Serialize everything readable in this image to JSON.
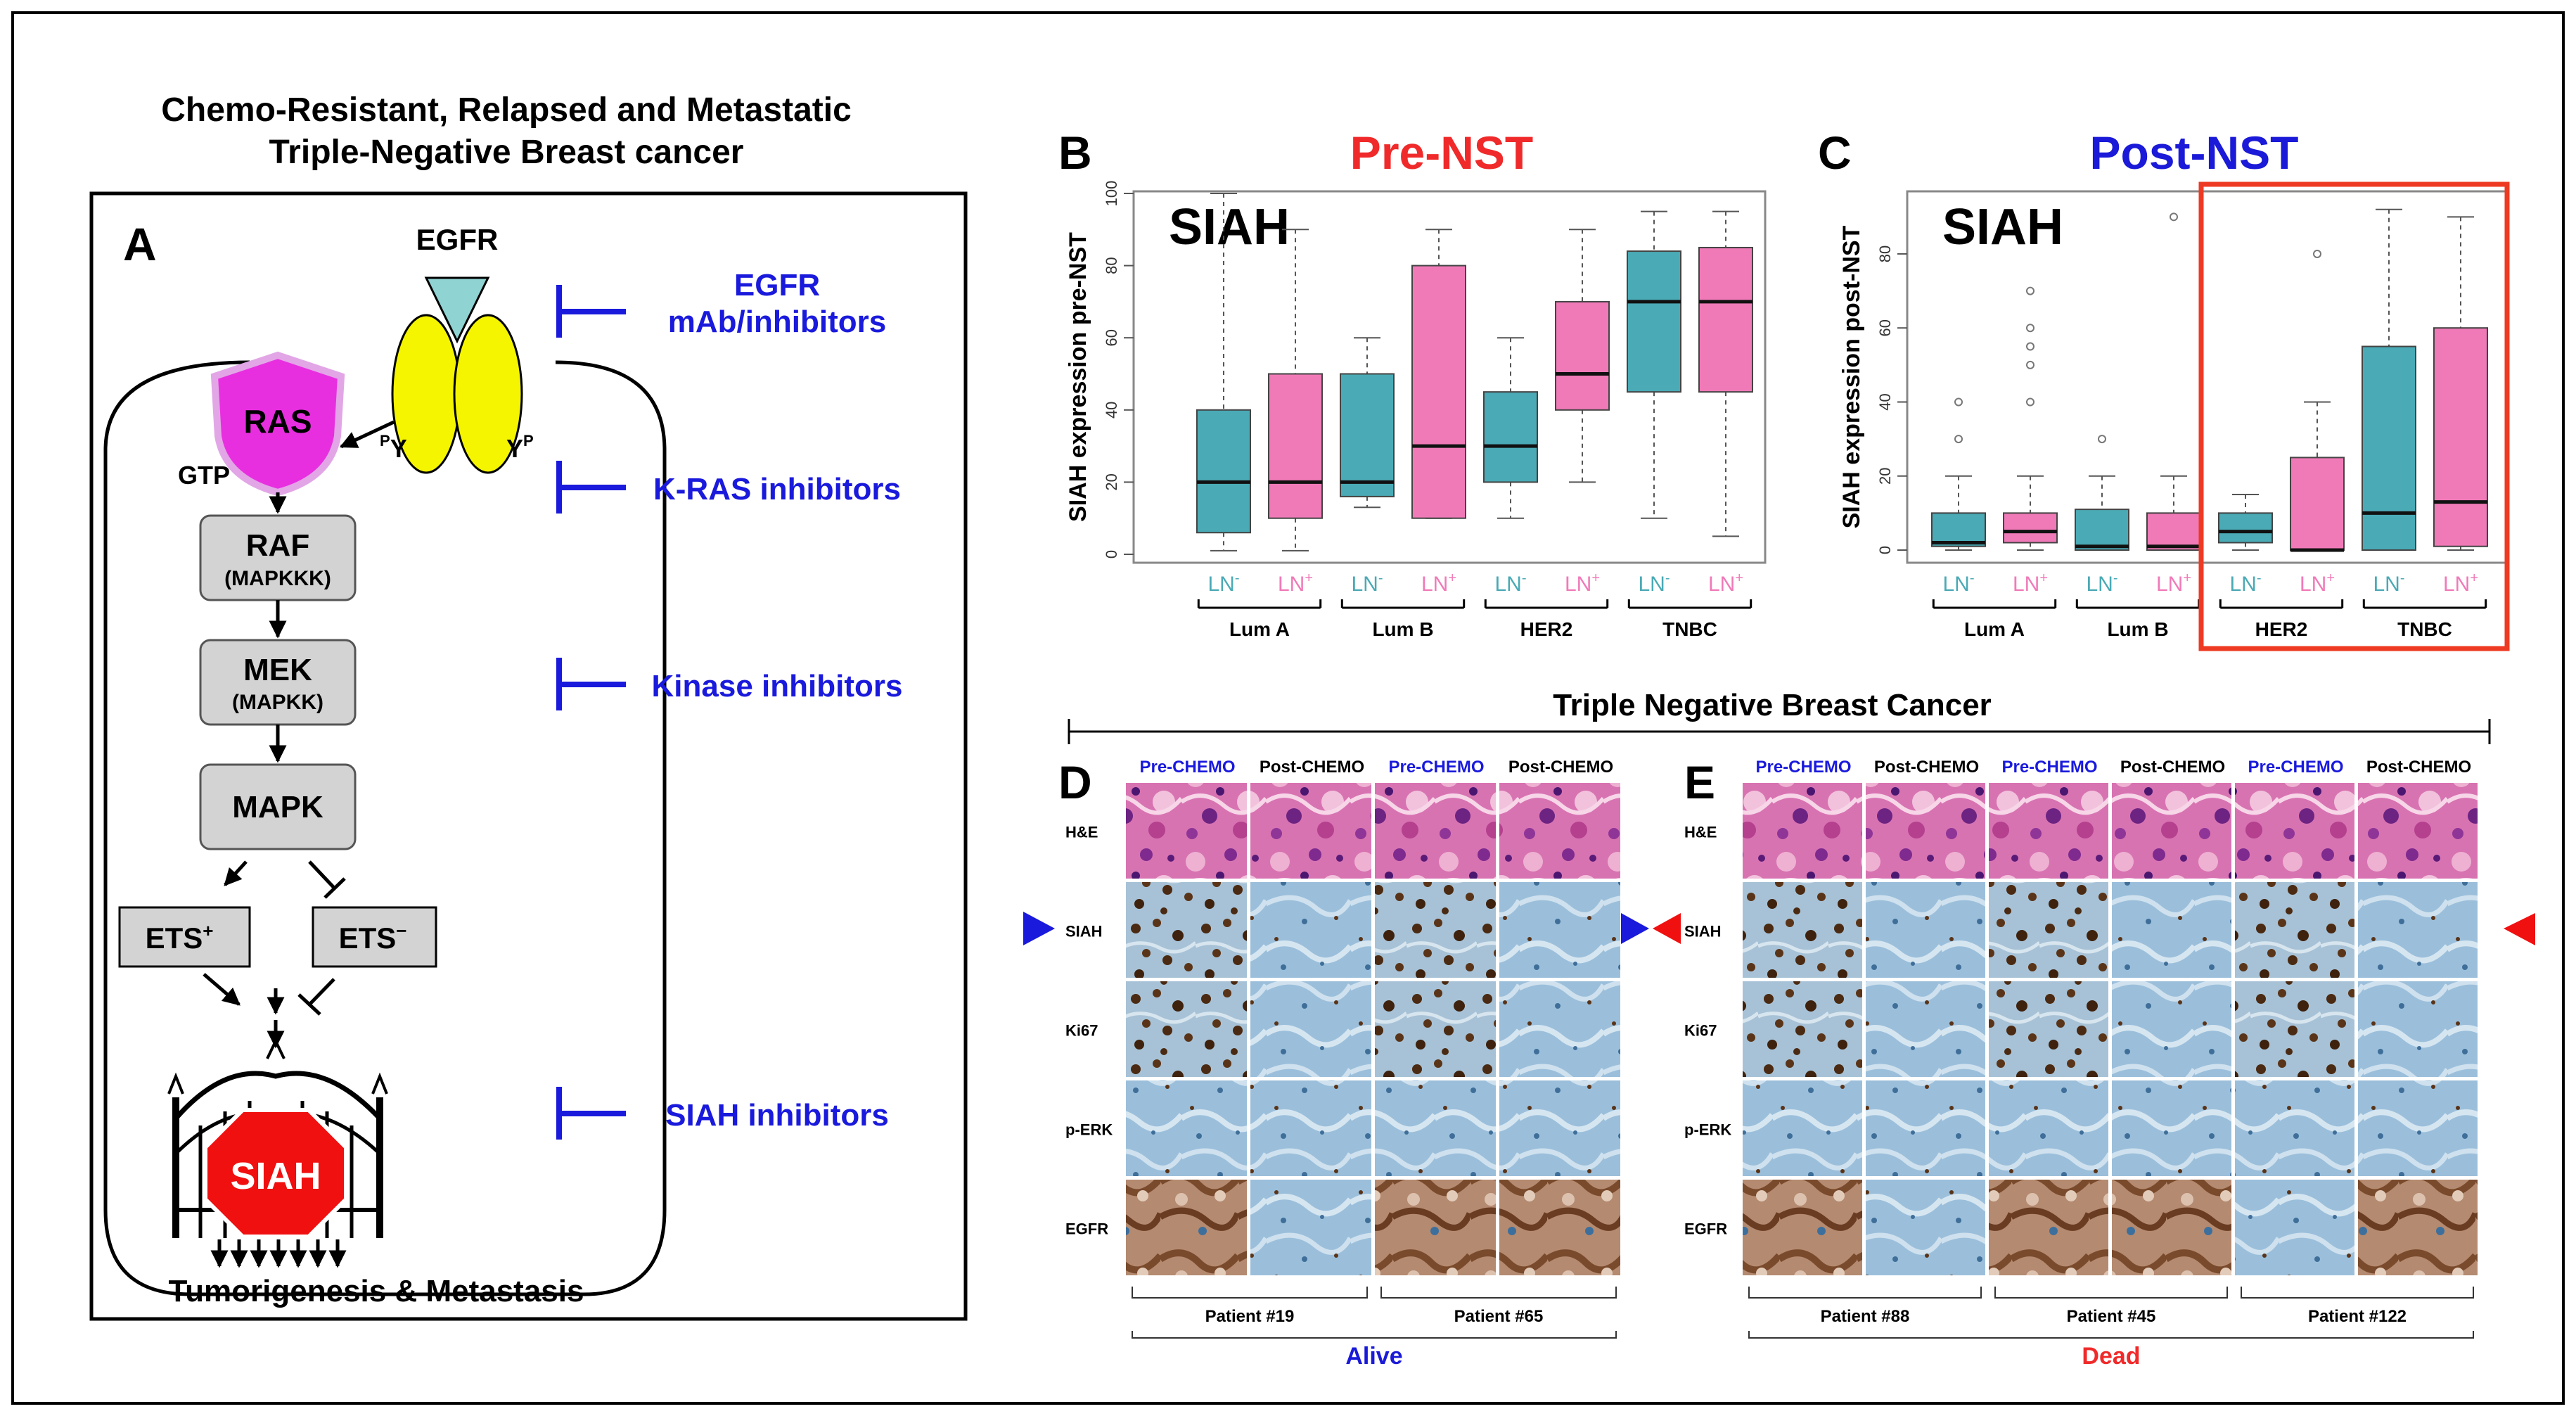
{
  "panel_a": {
    "letter": "A",
    "title_line1": "Chemo-Resistant, Relapsed and Metastatic",
    "title_line2": "Triple-Negative Breast cancer",
    "receptor": "EGFR",
    "ras": "RAS",
    "gtp": "GTP",
    "py": "Y",
    "py_sup": "P",
    "nodes": [
      {
        "label": "RAF",
        "sub": "(MAPKKK)"
      },
      {
        "label": "MEK",
        "sub": "(MAPKK)"
      },
      {
        "label": "MAPK",
        "sub": ""
      }
    ],
    "ets_plus": "ETS",
    "ets_plus_sup": "+",
    "ets_minus": "ETS",
    "ets_minus_sup": "−",
    "siah": "SIAH",
    "outcome": "Tumorigenesis & Metastasis",
    "inhibitors": [
      {
        "line1": "EGFR",
        "line2": "mAb/inhibitors"
      },
      {
        "line1": "K-RAS inhibitors",
        "line2": ""
      },
      {
        "line1": "Kinase inhibitors",
        "line2": ""
      },
      {
        "line1": "SIAH inhibitors",
        "line2": ""
      }
    ],
    "colors": {
      "inhibitor": "#1a1adc",
      "ras_fill": "#e82fe0",
      "receptor": "#f5f500",
      "stop": "#f01010",
      "teal": "#8fd3d3"
    }
  },
  "chart_data": [
    {
      "type": "box",
      "letter": "B",
      "title": "Pre-NST",
      "title_color": "#f02a2a",
      "label": "SIAH",
      "ylabel": "SIAH expression pre-NST",
      "ylim": [
        0,
        100
      ],
      "yticks": [
        "0",
        "20",
        "40",
        "60",
        "80",
        "100"
      ],
      "subgroups": [
        "Lum A",
        "Lum B",
        "HER2",
        "TNBC"
      ],
      "categories": [
        {
          "label": "LN",
          "sup": "-",
          "color": "#4aaab5",
          "min": 1,
          "q1": 6,
          "median": 20,
          "q3": 40,
          "max": 100
        },
        {
          "label": "LN",
          "sup": "+",
          "color": "#f07ab8",
          "min": 1,
          "q1": 10,
          "median": 20,
          "q3": 50,
          "max": 90
        },
        {
          "label": "LN",
          "sup": "-",
          "color": "#4aaab5",
          "min": 13,
          "q1": 16,
          "median": 20,
          "q3": 50,
          "max": 60
        },
        {
          "label": "LN",
          "sup": "+",
          "color": "#f07ab8",
          "min": 10,
          "q1": 10,
          "median": 30,
          "q3": 80,
          "max": 90
        },
        {
          "label": "LN",
          "sup": "-",
          "color": "#4aaab5",
          "min": 10,
          "q1": 20,
          "median": 30,
          "q3": 45,
          "max": 60
        },
        {
          "label": "LN",
          "sup": "+",
          "color": "#f07ab8",
          "min": 20,
          "q1": 40,
          "median": 50,
          "q3": 70,
          "max": 90
        },
        {
          "label": "LN",
          "sup": "-",
          "color": "#4aaab5",
          "min": 10,
          "q1": 45,
          "median": 70,
          "q3": 84,
          "max": 95
        },
        {
          "label": "LN",
          "sup": "+",
          "color": "#f07ab8",
          "min": 5,
          "q1": 45,
          "median": 70,
          "q3": 85,
          "max": 95
        }
      ],
      "outliers": []
    },
    {
      "type": "box",
      "letter": "C",
      "title": "Post-NST",
      "title_color": "#1a1ad8",
      "label": "SIAH",
      "ylabel": "SIAH expression post-NST",
      "ylim": [
        0,
        95
      ],
      "yticks": [
        "0",
        "20",
        "40",
        "60",
        "80"
      ],
      "subgroups": [
        "Lum A",
        "Lum B",
        "HER2",
        "TNBC"
      ],
      "highlight": "HER2 and TNBC",
      "categories": [
        {
          "label": "LN",
          "sup": "-",
          "color": "#4aaab5",
          "min": 0,
          "q1": 1,
          "median": 2,
          "q3": 10,
          "max": 20
        },
        {
          "label": "LN",
          "sup": "+",
          "color": "#f07ab8",
          "min": 0,
          "q1": 2,
          "median": 5,
          "q3": 10,
          "max": 20
        },
        {
          "label": "LN",
          "sup": "-",
          "color": "#4aaab5",
          "min": 0,
          "q1": 0,
          "median": 1,
          "q3": 11,
          "max": 20
        },
        {
          "label": "LN",
          "sup": "+",
          "color": "#f07ab8",
          "min": 0,
          "q1": 0,
          "median": 1,
          "q3": 10,
          "max": 20
        },
        {
          "label": "LN",
          "sup": "-",
          "color": "#4aaab5",
          "min": 0,
          "q1": 2,
          "median": 5,
          "q3": 10,
          "max": 15
        },
        {
          "label": "LN",
          "sup": "+",
          "color": "#f07ab8",
          "min": 0,
          "q1": 0,
          "median": 0,
          "q3": 25,
          "max": 40
        },
        {
          "label": "LN",
          "sup": "-",
          "color": "#4aaab5",
          "min": 0,
          "q1": 0,
          "median": 10,
          "q3": 55,
          "max": 92
        },
        {
          "label": "LN",
          "sup": "+",
          "color": "#f07ab8",
          "min": 0,
          "q1": 1,
          "median": 13,
          "q3": 60,
          "max": 90
        }
      ],
      "outliers": [
        {
          "cat": 0,
          "values": [
            30,
            40
          ]
        },
        {
          "cat": 1,
          "values": [
            40,
            50,
            55,
            60,
            70
          ]
        },
        {
          "cat": 2,
          "values": [
            30
          ]
        },
        {
          "cat": 3,
          "values": [
            90
          ]
        },
        {
          "cat": 5,
          "values": [
            80
          ]
        }
      ]
    }
  ],
  "panels_de": {
    "heading": "Triple Negative Breast Cancer",
    "rows": [
      "H&E",
      "SIAH",
      "Ki67",
      "p-ERK",
      "EGFR"
    ],
    "pre": "Pre-CHEMO",
    "post": "Post-CHEMO",
    "d": {
      "letter": "D",
      "patients": [
        "Patient #19",
        "Patient #65"
      ],
      "outcome": "Alive",
      "outcome_color": "#1a1ad8"
    },
    "e": {
      "letter": "E",
      "patients": [
        "Patient #88",
        "Patient #45",
        "Patient #122"
      ],
      "outcome": "Dead",
      "outcome_color": "#f02a2a"
    },
    "stain_colors": {
      "he": "#c23a8a",
      "he_light": "#eba4cc",
      "ihc_bg": "#8eb6d6",
      "ihc_light": "#c9dcea",
      "brown": "#5a3418"
    }
  }
}
